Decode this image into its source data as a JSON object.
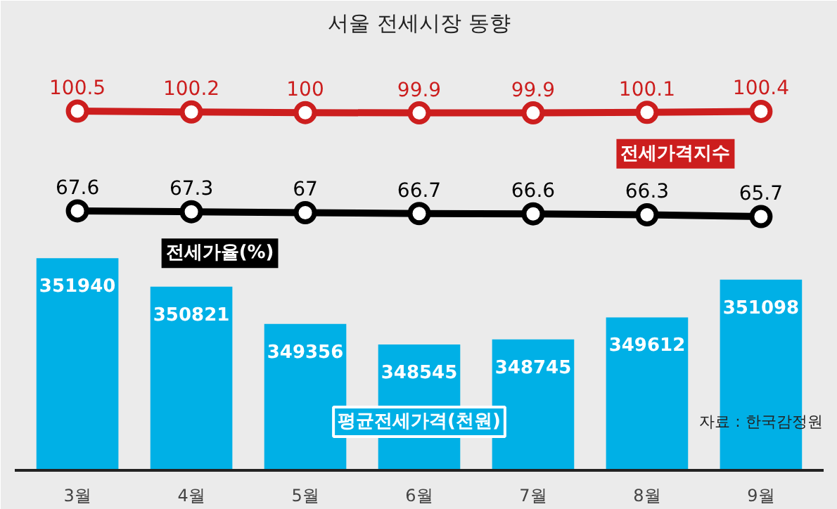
{
  "chart_data": {
    "type": "bar",
    "title": "서울 전세시장 동향",
    "categories": [
      "3월",
      "4월",
      "5월",
      "6월",
      "7월",
      "8월",
      "9월"
    ],
    "series": [
      {
        "name": "평균전세가격(천원)",
        "color": "#00b0e6",
        "values": [
          351940,
          350821,
          349356,
          348545,
          348745,
          349612,
          351098
        ]
      },
      {
        "name": "전세가격지수",
        "type": "line",
        "axis": "y2",
        "color": "#cc1e1e",
        "values": [
          100.5,
          100.2,
          100,
          99.9,
          99.9,
          100.1,
          100.4
        ]
      },
      {
        "name": "전세가율(%)",
        "type": "line",
        "axis": "y2",
        "color": "#000000",
        "values": [
          67.6,
          67.3,
          67,
          66.7,
          66.6,
          66.3,
          65.7
        ]
      }
    ],
    "ylim": [
      343600,
      360400
    ],
    "y2lim": [
      -18,
      123
    ],
    "tick_labels": "x",
    "data_labels": true,
    "grid": false,
    "marker": "circle",
    "line_style": "solid",
    "annotations": [
      "자료 : 한국감정원"
    ]
  }
}
